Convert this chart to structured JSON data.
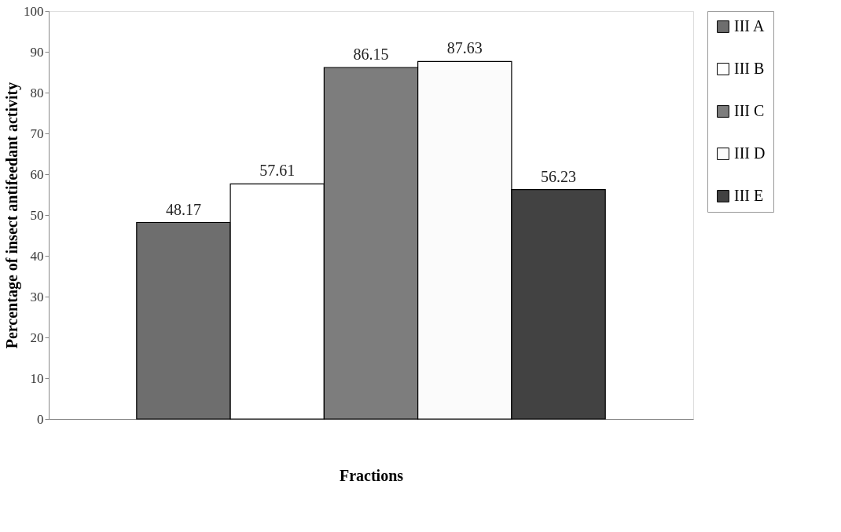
{
  "chart_data": {
    "type": "bar",
    "xlabel": "Fractions",
    "ylabel": "Percentage of insect antifeedant activity",
    "categories": [
      null
    ],
    "series": [
      {
        "name": "III A",
        "color": "#6e6e6e",
        "values": [
          48.17
        ]
      },
      {
        "name": "III B",
        "color": "#ffffff",
        "values": [
          57.61
        ]
      },
      {
        "name": "III C",
        "color": "#7d7d7d",
        "values": [
          86.15
        ]
      },
      {
        "name": "III D",
        "color": "#fbfbfb",
        "values": [
          87.63
        ]
      },
      {
        "name": "III E",
        "color": "#424242",
        "values": [
          56.23
        ]
      }
    ],
    "ylim": [
      0,
      100
    ],
    "yticks": [
      0,
      10,
      20,
      30,
      40,
      50,
      60,
      70,
      80,
      90,
      100
    ],
    "grid": false,
    "legend": "right",
    "data_labels": true
  }
}
